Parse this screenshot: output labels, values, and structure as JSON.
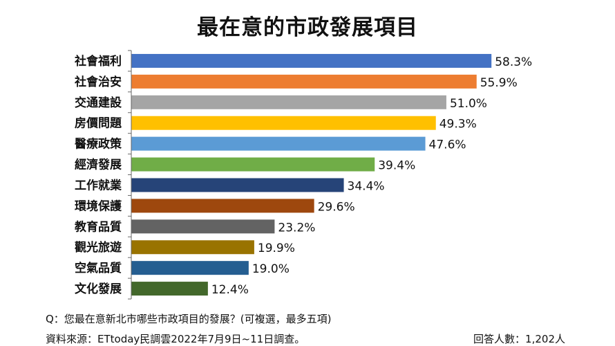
{
  "chart_data": {
    "type": "bar",
    "orientation": "horizontal",
    "title": "最在意的市政發展項目",
    "categories": [
      "社會福利",
      "社會治安",
      "交通建設",
      "房價問題",
      "醫療政策",
      "經濟發展",
      "工作就業",
      "環境保護",
      "教育品質",
      "觀光旅遊",
      "空氣品質",
      "文化發展"
    ],
    "values": [
      58.3,
      55.9,
      51.0,
      49.3,
      47.6,
      39.4,
      34.4,
      29.6,
      23.2,
      19.9,
      19.0,
      12.4
    ],
    "labels": [
      "58.3%",
      "55.9%",
      "51.0%",
      "49.3%",
      "47.6%",
      "39.4%",
      "34.4%",
      "29.6%",
      "23.2%",
      "19.9%",
      "19.0%",
      "12.4%"
    ],
    "colors": [
      "#4472C4",
      "#ED7D31",
      "#A5A5A5",
      "#FFC000",
      "#5B9BD5",
      "#70AD47",
      "#264478",
      "#9E480E",
      "#636363",
      "#997300",
      "#255E91",
      "#43682B"
    ],
    "xlim": [
      0,
      100
    ],
    "unit": "%"
  },
  "footer": {
    "question": "Q：您最在意新北市哪些市政項目的發展？(可複選，最多五項)",
    "source": "資料來源：ETtoday民調雲2022年7月9日~11日調查。",
    "respondents": "回答人數：1,202人"
  }
}
